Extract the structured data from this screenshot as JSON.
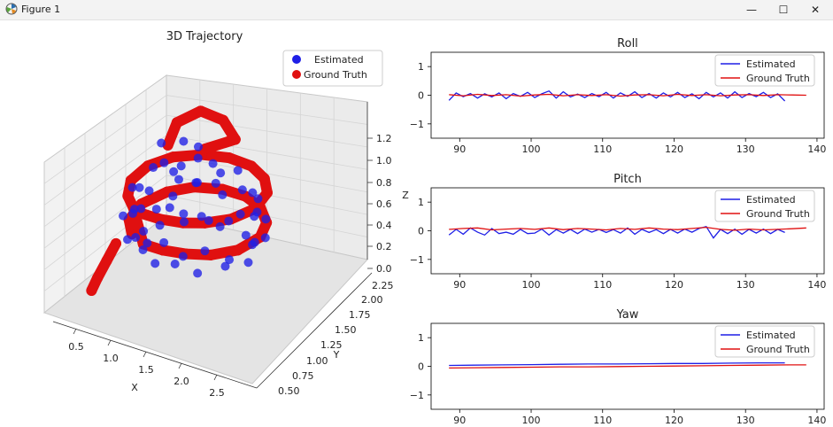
{
  "window": {
    "title": "Figure 1",
    "minimize_glyph": "—",
    "maximize_glyph": "☐",
    "close_glyph": "✕",
    "icon": "matplotlib-icon"
  },
  "colors": {
    "estimated": "#1f1fe6",
    "ground_truth": "#e01010",
    "axes_edge": "#000000",
    "pane_fill": "#ececec"
  },
  "chart_data": [
    {
      "type": "scatter",
      "projection": "3d",
      "title": "3D Trajectory",
      "xlabel": "X",
      "ylabel": "Y",
      "zlabel": "Z",
      "xticks": [
        "0.5",
        "1.0",
        "1.5",
        "2.0",
        "2.5"
      ],
      "yticks": [
        "0.50",
        "0.75",
        "1.00",
        "1.25",
        "1.50",
        "1.75",
        "2.00",
        "2.25"
      ],
      "zticks": [
        "0.0",
        "0.2",
        "0.4",
        "0.6",
        "0.8",
        "1.0",
        "1.2"
      ],
      "xlim": [
        0.2,
        2.8
      ],
      "ylim": [
        0.4,
        2.35
      ],
      "zlim": [
        -0.05,
        1.3
      ],
      "legend_position": "top-right",
      "series": [
        {
          "name": "Estimated",
          "points": [
            [
              1.4,
              0.6,
              0.85
            ],
            [
              1.6,
              0.6,
              0.9
            ],
            [
              1.8,
              0.62,
              0.8
            ],
            [
              2.0,
              0.7,
              0.85
            ],
            [
              2.2,
              0.8,
              0.75
            ],
            [
              2.35,
              1.0,
              0.8
            ],
            [
              2.4,
              1.2,
              0.7
            ],
            [
              2.3,
              1.4,
              0.75
            ],
            [
              2.1,
              1.55,
              0.7
            ],
            [
              1.8,
              1.65,
              0.8
            ],
            [
              1.5,
              1.7,
              0.7
            ],
            [
              1.2,
              1.65,
              0.8
            ],
            [
              0.95,
              1.5,
              0.7
            ],
            [
              0.8,
              1.3,
              0.8
            ],
            [
              0.75,
              1.1,
              0.7
            ],
            [
              0.8,
              0.9,
              0.8
            ],
            [
              0.95,
              0.75,
              0.7
            ],
            [
              1.15,
              0.62,
              0.8
            ],
            [
              1.3,
              0.55,
              0.55
            ],
            [
              1.55,
              0.55,
              0.6
            ],
            [
              1.8,
              0.6,
              0.5
            ],
            [
              2.05,
              0.7,
              0.55
            ],
            [
              2.3,
              0.85,
              0.45
            ],
            [
              2.45,
              1.1,
              0.5
            ],
            [
              2.45,
              1.35,
              0.45
            ],
            [
              2.3,
              1.55,
              0.5
            ],
            [
              2.05,
              1.7,
              0.45
            ],
            [
              1.75,
              1.8,
              0.55
            ],
            [
              1.45,
              1.8,
              0.45
            ],
            [
              1.15,
              1.7,
              0.55
            ],
            [
              0.9,
              1.55,
              0.45
            ],
            [
              0.7,
              1.35,
              0.55
            ],
            [
              0.65,
              1.1,
              0.45
            ],
            [
              0.7,
              0.85,
              0.55
            ],
            [
              0.9,
              0.68,
              0.45
            ],
            [
              1.1,
              0.58,
              0.55
            ],
            [
              1.3,
              0.7,
              0.3
            ],
            [
              1.6,
              0.7,
              0.35
            ],
            [
              1.9,
              0.75,
              0.3
            ],
            [
              2.2,
              0.9,
              0.35
            ],
            [
              2.35,
              1.15,
              0.3
            ],
            [
              2.25,
              1.4,
              0.35
            ],
            [
              2.0,
              1.55,
              0.3
            ],
            [
              1.7,
              1.6,
              0.35
            ],
            [
              1.4,
              1.6,
              0.3
            ],
            [
              1.1,
              1.5,
              0.35
            ],
            [
              0.9,
              1.3,
              0.3
            ],
            [
              0.85,
              1.05,
              0.35
            ],
            [
              1.0,
              0.85,
              0.3
            ],
            [
              1.5,
              0.9,
              1.0
            ],
            [
              1.2,
              1.0,
              1.05
            ],
            [
              1.0,
              1.2,
              1.1
            ],
            [
              1.1,
              1.5,
              1.0
            ],
            [
              1.4,
              1.4,
              1.05
            ],
            [
              1.7,
              1.3,
              1.0
            ],
            [
              1.9,
              1.1,
              0.95
            ],
            [
              1.6,
              1.1,
              0.9
            ],
            [
              1.3,
              1.2,
              0.95
            ]
          ]
        },
        {
          "name": "Ground Truth",
          "points": [
            [
              1.2,
              0.55,
              0.8
            ],
            [
              1.5,
              0.55,
              0.8
            ],
            [
              1.8,
              0.6,
              0.8
            ],
            [
              2.05,
              0.7,
              0.8
            ],
            [
              2.3,
              0.88,
              0.8
            ],
            [
              2.45,
              1.15,
              0.8
            ],
            [
              2.4,
              1.45,
              0.8
            ],
            [
              2.2,
              1.65,
              0.8
            ],
            [
              1.9,
              1.78,
              0.8
            ],
            [
              1.55,
              1.8,
              0.8
            ],
            [
              1.2,
              1.72,
              0.8
            ],
            [
              0.9,
              1.55,
              0.8
            ],
            [
              0.72,
              1.3,
              0.8
            ],
            [
              0.7,
              1.0,
              0.8
            ],
            [
              0.85,
              0.75,
              0.8
            ],
            [
              1.05,
              0.6,
              0.8
            ],
            [
              1.2,
              0.6,
              0.5
            ],
            [
              1.5,
              0.6,
              0.5
            ],
            [
              1.8,
              0.65,
              0.5
            ],
            [
              2.1,
              0.75,
              0.5
            ],
            [
              2.35,
              0.95,
              0.5
            ],
            [
              2.45,
              1.25,
              0.5
            ],
            [
              2.35,
              1.5,
              0.5
            ],
            [
              2.1,
              1.7,
              0.5
            ],
            [
              1.8,
              1.8,
              0.5
            ],
            [
              1.45,
              1.8,
              0.5
            ],
            [
              1.1,
              1.7,
              0.5
            ],
            [
              0.85,
              1.5,
              0.5
            ],
            [
              0.7,
              1.2,
              0.5
            ],
            [
              0.75,
              0.9,
              0.5
            ],
            [
              0.95,
              0.7,
              0.5
            ],
            [
              1.1,
              1.2,
              1.1
            ],
            [
              1.0,
              1.5,
              1.15
            ],
            [
              1.2,
              1.7,
              1.2
            ],
            [
              1.5,
              1.75,
              1.15
            ],
            [
              1.8,
              1.6,
              1.1
            ],
            [
              1.5,
              1.4,
              1.05
            ],
            [
              0.75,
              0.65,
              0.4
            ],
            [
              0.65,
              0.6,
              0.25
            ],
            [
              0.55,
              0.55,
              0.1
            ],
            [
              0.5,
              0.5,
              0.0
            ]
          ]
        }
      ]
    },
    {
      "type": "line",
      "title": "Roll",
      "xlim": [
        86,
        141
      ],
      "ylim": [
        -1.5,
        1.5
      ],
      "xticks": [
        "90",
        "100",
        "110",
        "120",
        "130",
        "140"
      ],
      "yticks": [
        "1",
        "0",
        "−1"
      ],
      "legend_position": "top-right",
      "series": [
        {
          "name": "Estimated",
          "x": [
            88.5,
            89.5,
            90.5,
            91.5,
            92.5,
            93.5,
            94.5,
            95.5,
            96.5,
            97.5,
            98.5,
            99.5,
            100.5,
            101.5,
            102.5,
            103.5,
            104.5,
            105.5,
            106.5,
            107.5,
            108.5,
            109.5,
            110.5,
            111.5,
            112.5,
            113.5,
            114.5,
            115.5,
            116.5,
            117.5,
            118.5,
            119.5,
            120.5,
            121.5,
            122.5,
            123.5,
            124.5,
            125.5,
            126.5,
            127.5,
            128.5,
            129.5,
            130.5,
            131.5,
            132.5,
            133.5,
            134.5,
            135.5
          ],
          "y": [
            -0.18,
            0.08,
            -0.05,
            0.06,
            -0.1,
            0.05,
            -0.06,
            0.08,
            -0.12,
            0.06,
            -0.04,
            0.1,
            -0.08,
            0.05,
            0.15,
            -0.1,
            0.12,
            -0.06,
            0.04,
            -0.08,
            0.06,
            -0.05,
            0.1,
            -0.1,
            0.08,
            -0.04,
            0.12,
            -0.08,
            0.06,
            -0.1,
            0.08,
            -0.06,
            0.1,
            -0.08,
            0.05,
            -0.12,
            0.1,
            -0.06,
            0.08,
            -0.1,
            0.12,
            -0.08,
            0.06,
            -0.05,
            0.1,
            -0.08,
            0.05,
            -0.2
          ]
        },
        {
          "name": "Ground Truth",
          "x": [
            88.5,
            90.5,
            92.5,
            94.5,
            96.5,
            98.5,
            100.5,
            102.5,
            104.5,
            106.5,
            108.5,
            110.5,
            112.5,
            114.5,
            116.5,
            118.5,
            120.5,
            122.5,
            124.5,
            126.5,
            128.5,
            130.5,
            132.5,
            134.5,
            136.5,
            138.5
          ],
          "y": [
            0.02,
            -0.02,
            0.03,
            -0.01,
            0.02,
            -0.03,
            0.01,
            0.03,
            -0.02,
            0.02,
            -0.01,
            0.02,
            -0.03,
            0.01,
            0.02,
            -0.02,
            0.03,
            -0.01,
            0.02,
            -0.02,
            0.01,
            0.02,
            -0.01,
            0.02,
            0.01,
            0.0
          ]
        }
      ]
    },
    {
      "type": "line",
      "title": "Pitch",
      "xlim": [
        86,
        141
      ],
      "ylim": [
        -1.5,
        1.5
      ],
      "xticks": [
        "90",
        "100",
        "110",
        "120",
        "130",
        "140"
      ],
      "yticks": [
        "1",
        "0",
        "−1"
      ],
      "legend_position": "top-right",
      "series": [
        {
          "name": "Estimated",
          "x": [
            88.5,
            89.5,
            90.5,
            91.5,
            92.5,
            93.5,
            94.5,
            95.5,
            96.5,
            97.5,
            98.5,
            99.5,
            100.5,
            101.5,
            102.5,
            103.5,
            104.5,
            105.5,
            106.5,
            107.5,
            108.5,
            109.5,
            110.5,
            111.5,
            112.5,
            113.5,
            114.5,
            115.5,
            116.5,
            117.5,
            118.5,
            119.5,
            120.5,
            121.5,
            122.5,
            123.5,
            124.5,
            125.5,
            126.5,
            127.5,
            128.5,
            129.5,
            130.5,
            131.5,
            132.5,
            133.5,
            134.5,
            135.5
          ],
          "y": [
            -0.15,
            0.05,
            -0.12,
            0.1,
            -0.05,
            -0.15,
            0.08,
            -0.1,
            -0.05,
            -0.12,
            0.05,
            -0.1,
            -0.08,
            0.06,
            -0.15,
            0.04,
            -0.08,
            0.05,
            -0.1,
            0.06,
            -0.05,
            0.05,
            -0.06,
            0.04,
            -0.08,
            0.1,
            -0.12,
            0.05,
            -0.06,
            0.04,
            -0.1,
            0.05,
            -0.08,
            0.06,
            -0.05,
            0.08,
            0.15,
            -0.25,
            0.05,
            -0.1,
            0.06,
            -0.12,
            0.05,
            -0.08,
            0.06,
            -0.1,
            0.05,
            -0.06
          ]
        },
        {
          "name": "Ground Truth",
          "x": [
            88.5,
            90.5,
            92.5,
            94.5,
            96.5,
            98.5,
            100.5,
            102.5,
            104.5,
            106.5,
            108.5,
            110.5,
            112.5,
            114.5,
            116.5,
            118.5,
            120.5,
            122.5,
            124.5,
            126.5,
            128.5,
            130.5,
            132.5,
            134.5,
            136.5,
            138.5
          ],
          "y": [
            0.05,
            0.08,
            0.1,
            0.03,
            0.06,
            0.08,
            0.05,
            0.1,
            0.04,
            0.08,
            0.06,
            0.03,
            0.08,
            0.05,
            0.1,
            0.06,
            0.04,
            0.08,
            0.12,
            0.05,
            0.02,
            0.06,
            0.03,
            0.05,
            0.07,
            0.1
          ]
        }
      ]
    },
    {
      "type": "line",
      "title": "Yaw",
      "xlim": [
        86,
        141
      ],
      "ylim": [
        -1.5,
        1.5
      ],
      "xticks": [
        "90",
        "100",
        "110",
        "120",
        "130",
        "140"
      ],
      "yticks": [
        "1",
        "0",
        "−1"
      ],
      "legend_position": "top-right",
      "series": [
        {
          "name": "Estimated",
          "x": [
            88.5,
            92,
            96,
            100,
            104,
            108,
            112,
            116,
            120,
            124,
            128,
            132,
            135.5
          ],
          "y": [
            0.03,
            0.04,
            0.05,
            0.06,
            0.07,
            0.08,
            0.08,
            0.09,
            0.1,
            0.1,
            0.11,
            0.12,
            0.12
          ]
        },
        {
          "name": "Ground Truth",
          "x": [
            88.5,
            92,
            96,
            100,
            104,
            108,
            112,
            116,
            120,
            124,
            128,
            132,
            136,
            138.5
          ],
          "y": [
            -0.06,
            -0.05,
            -0.04,
            -0.03,
            -0.02,
            -0.02,
            -0.01,
            0.0,
            0.01,
            0.02,
            0.03,
            0.04,
            0.05,
            0.05
          ]
        }
      ]
    }
  ]
}
